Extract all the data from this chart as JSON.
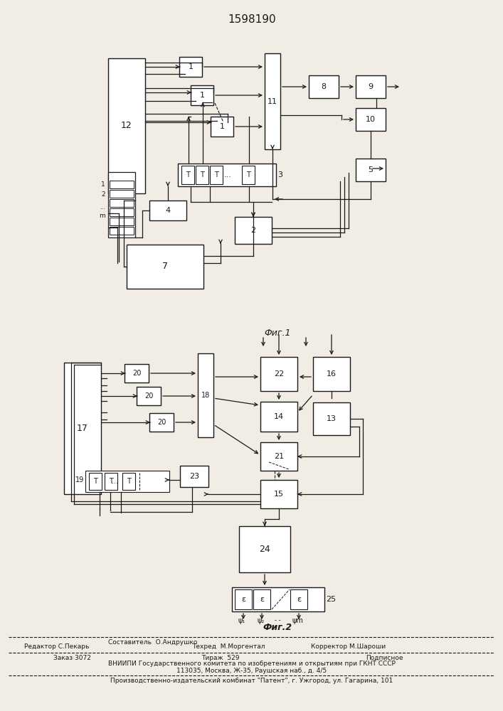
{
  "title": "1598190",
  "fig1_label": "Фиг.1",
  "fig2_label": "Фиг.2",
  "background_color": "#f2ede4",
  "line_color": "#1a1a1a",
  "box_color": "#ffffff",
  "footer_col1_line1": "Редактор С.Пекарь",
  "footer_col2_line1": "Составитель  О.Андрушко",
  "footer_col2_line2": "Техред  М.Моргентал",
  "footer_col3_line2": "Корректор М.Шароши",
  "footer_order": "Заказ 3072",
  "footer_tirazh": "Тираж  529",
  "footer_podp": "Подписное",
  "footer_vniip1": "ВНИИПИ Государственного комитета по изобретениям и открытиям при ГКНТ СССР",
  "footer_vniip2": "113035, Москва, Ж-35, Раушская наб., д. 4/5",
  "footer_patent": "Производственно-издательский комбинат \"Патент\", г. Ужгород, ул. Гагарина, 101"
}
